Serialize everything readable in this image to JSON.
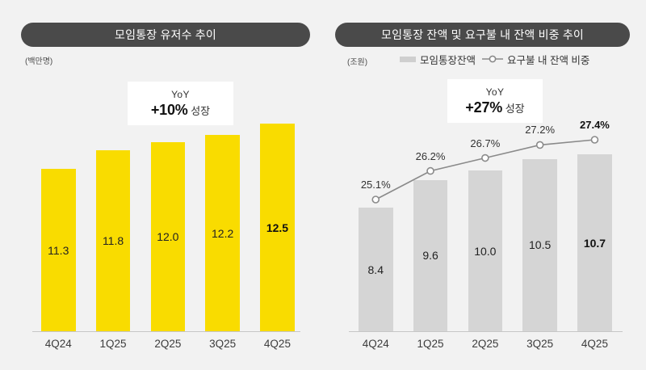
{
  "page": {
    "background": "#F2F2F2",
    "pill_color": "#4A4A4A",
    "accent_yellow": "#F9DC00",
    "bar_gray": "#D5D5D5",
    "line_gray": "#8A8A8A"
  },
  "chart_data": [
    {
      "type": "bar",
      "title": "모임통장 유저수 추이",
      "unit": "(백만명)",
      "yoy": {
        "label": "YoY",
        "value": "+10%",
        "suffix": "성장"
      },
      "categories": [
        "4Q24",
        "1Q25",
        "2Q25",
        "3Q25",
        "4Q25"
      ],
      "values": [
        11.3,
        11.8,
        12.0,
        12.2,
        12.5
      ],
      "value_labels": [
        "11.3",
        "11.8",
        "12.0",
        "12.2",
        "12.5"
      ],
      "bar_color": "#F9DC00",
      "emphasized_index": 4,
      "grid": false,
      "legend": null,
      "xlabel": "",
      "ylabel": "(백만명)"
    },
    {
      "type": "bar+line",
      "title": "모임통장 잔액 및 요구불 내 잔액 비중 추이",
      "unit": "(조원)",
      "yoy": {
        "label": "YoY",
        "value": "+27%",
        "suffix": "성장"
      },
      "categories": [
        "4Q24",
        "1Q25",
        "2Q25",
        "3Q25",
        "4Q25"
      ],
      "series": [
        {
          "name": "모임통장잔액",
          "type": "bar",
          "values": [
            8.4,
            9.6,
            10.0,
            10.5,
            10.7
          ],
          "value_labels": [
            "8.4",
            "9.6",
            "10.0",
            "10.5",
            "10.7"
          ],
          "color": "#D5D5D5"
        },
        {
          "name": "요구불 내 잔액 비중",
          "type": "line",
          "values": [
            25.1,
            26.2,
            26.7,
            27.2,
            27.4
          ],
          "value_labels": [
            "25.1%",
            "26.2%",
            "26.7%",
            "27.2%",
            "27.4%"
          ],
          "color": "#8A8A8A",
          "marker": "open-circle"
        }
      ],
      "emphasized_index": 4,
      "grid": false,
      "legend_position": "top",
      "xlabel": "",
      "ylabel": "(조원)"
    }
  ]
}
